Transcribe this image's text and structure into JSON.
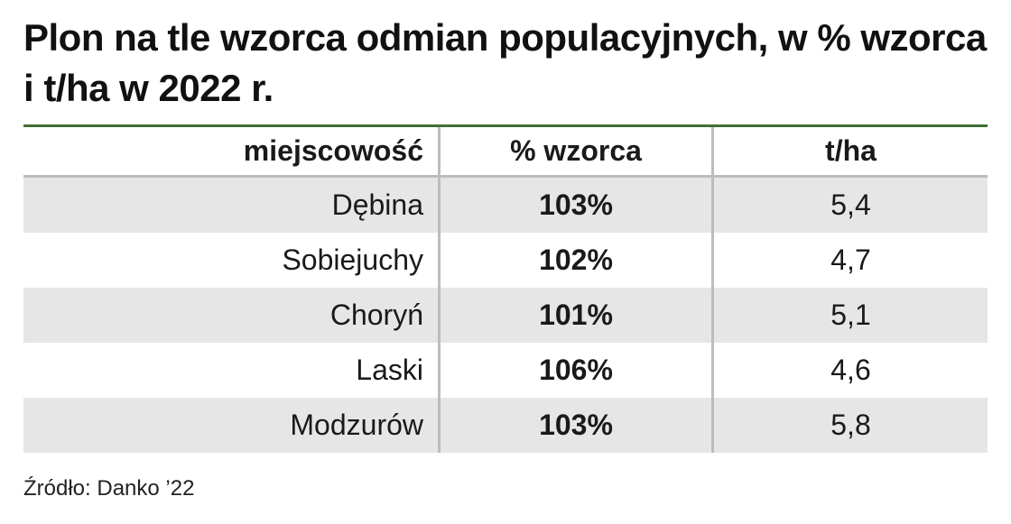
{
  "title": "Plon na tle wzorca odmian populacyjnych, w % wzorca i t/ha w 2022 r.",
  "source": "Źródło: Danko ’22",
  "colors": {
    "rule": "#3f6f34",
    "row_shade": "#e6e6e6",
    "divider": "#bdbdbd"
  },
  "chart_data": {
    "type": "table",
    "title": "Plon na tle wzorca odmian populacyjnych, w % wzorca i t/ha w 2022 r.",
    "columns": [
      "miejscowość",
      "% wzorca",
      "t/ha"
    ],
    "rows": [
      [
        "Dębina",
        "103%",
        "5,4"
      ],
      [
        "Sobiejuchy",
        "102%",
        "4,7"
      ],
      [
        "Choryń",
        "101%",
        "5,1"
      ],
      [
        "Laski",
        "106%",
        "4,6"
      ],
      [
        "Modzurów",
        "103%",
        "5,8"
      ]
    ]
  }
}
